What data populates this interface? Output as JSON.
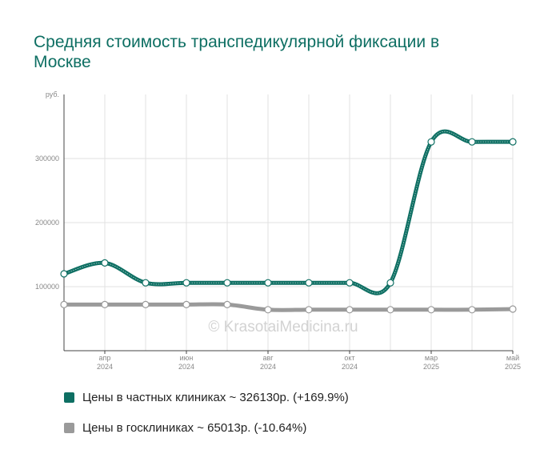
{
  "header": {
    "title": "Средняя стоимость транспедикулярной фиксации в Москве"
  },
  "watermark": "© KrasotaiMedicina.ru",
  "colors": {
    "private": "#0e6f63",
    "state": "#9a9a9a",
    "grid": "#e2e2e2",
    "axis": "#444444"
  },
  "legend": [
    {
      "text": "Цены в частных клиниках ~ 326130р. (+169.9%)",
      "color": "#0e6f63"
    },
    {
      "text": "Цены в госклиниках ~ 65013р. (-10.64%)",
      "color": "#9a9a9a"
    }
  ],
  "chart_data": {
    "type": "line",
    "ylabel": "руб.",
    "ylim": [
      0,
      400000
    ],
    "y_ticks": [
      "100000",
      "200000",
      "300000"
    ],
    "y_tick_values": [
      100000,
      200000,
      300000
    ],
    "x_ticks": [
      {
        "label1": "апр",
        "label2": "2024",
        "index": 1
      },
      {
        "label1": "июн",
        "label2": "2024",
        "index": 3
      },
      {
        "label1": "авг",
        "label2": "2024",
        "index": 5
      },
      {
        "label1": "окт",
        "label2": "2024",
        "index": 7
      },
      {
        "label1": "мар",
        "label2": "2025",
        "index": 9
      },
      {
        "label1": "май",
        "label2": "2025",
        "index": 11
      }
    ],
    "grid": true,
    "legend_position": "bottom",
    "series": [
      {
        "name": "Цены в частных клиниках",
        "color": "#0e6f63",
        "values": [
          120000,
          137000,
          106000,
          106000,
          106000,
          106000,
          106000,
          106000,
          106000,
          326000,
          326000,
          326130
        ]
      },
      {
        "name": "Цены в госклиниках",
        "color": "#9a9a9a",
        "values": [
          72000,
          72000,
          72000,
          72000,
          72000,
          64000,
          64000,
          64000,
          64000,
          64000,
          64000,
          65013
        ]
      }
    ]
  }
}
